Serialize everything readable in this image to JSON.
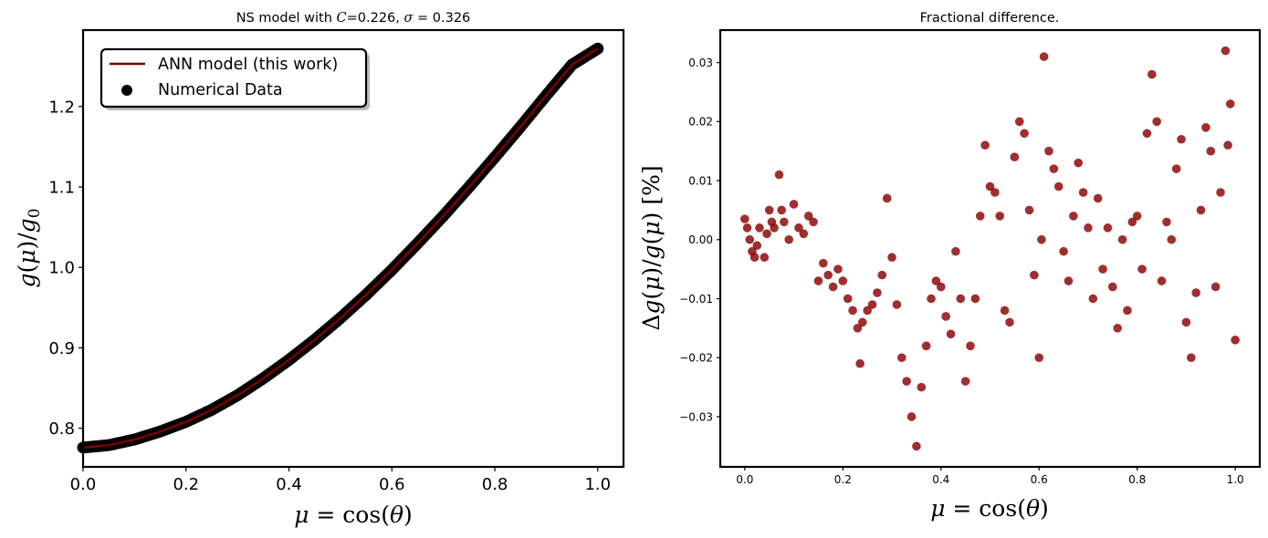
{
  "colors": {
    "line": "#7a0000",
    "marker": "#000000",
    "diff_marker": "#8b0000",
    "axes": "#000000",
    "background": "#ffffff"
  },
  "chart_data": [
    {
      "type": "line",
      "title_parts": {
        "prefix": "NS model with ",
        "c_symbol": "C",
        "c_value": "=0.226, ",
        "sigma_symbol": "σ",
        "sigma_value": " = 0.326"
      },
      "xlabel_parts": {
        "mu": "μ",
        "eq": " = ",
        "cos": "cos",
        "open": "(",
        "theta": "θ",
        "close": ")"
      },
      "ylabel_parts": {
        "g": "g",
        "open": "(",
        "mu": "μ",
        "close": ")",
        "slash": "/",
        "g0": "g",
        "sub0": "0"
      },
      "xlim": [
        0.0,
        1.05
      ],
      "ylim": [
        0.752,
        1.295
      ],
      "xticks": [
        "0.0",
        "0.2",
        "0.4",
        "0.6",
        "0.8",
        "1.0"
      ],
      "yticks": [
        "0.8",
        "0.9",
        "1.0",
        "1.1",
        "1.2"
      ],
      "legend": {
        "position": "upper-left",
        "entries": [
          "ANN model (this work)",
          "Numerical Data"
        ]
      },
      "series": [
        {
          "name": "ANN model (this work)",
          "kind": "line",
          "x": [
            0.0,
            0.05,
            0.1,
            0.15,
            0.2,
            0.25,
            0.3,
            0.35,
            0.4,
            0.45,
            0.5,
            0.55,
            0.6,
            0.65,
            0.7,
            0.75,
            0.8,
            0.85,
            0.9,
            0.95,
            1.0
          ],
          "y": [
            0.776,
            0.779,
            0.786,
            0.796,
            0.808,
            0.823,
            0.841,
            0.862,
            0.885,
            0.91,
            0.937,
            0.966,
            0.997,
            1.03,
            1.064,
            1.1,
            1.137,
            1.175,
            1.214,
            1.252,
            1.272
          ]
        },
        {
          "name": "Numerical Data",
          "kind": "scatter",
          "x": [
            0.0,
            0.05,
            0.1,
            0.15,
            0.2,
            0.25,
            0.3,
            0.35,
            0.4,
            0.45,
            0.5,
            0.55,
            0.6,
            0.65,
            0.7,
            0.75,
            0.8,
            0.85,
            0.9,
            0.95,
            1.0
          ],
          "y": [
            0.776,
            0.779,
            0.786,
            0.796,
            0.808,
            0.823,
            0.841,
            0.862,
            0.885,
            0.91,
            0.937,
            0.966,
            0.997,
            1.03,
            1.064,
            1.1,
            1.137,
            1.175,
            1.214,
            1.252,
            1.272
          ]
        }
      ]
    },
    {
      "type": "scatter",
      "title": "Fractional difference.",
      "xlabel_parts": {
        "mu": "μ",
        "eq": " = ",
        "cos": "cos",
        "open": "(",
        "theta": "θ",
        "close": ")"
      },
      "ylabel_parts": {
        "delta": "Δ",
        "g": "g",
        "open": "(",
        "mu": "μ",
        "close": ")",
        "slash": "/",
        "g2": "g",
        "open2": "(",
        "mu2": "μ",
        "close2": ")",
        "pct": " [%]"
      },
      "xlim": [
        -0.05,
        1.05
      ],
      "ylim": [
        -0.0385,
        0.0355
      ],
      "xticks": [
        "0.0",
        "0.2",
        "0.4",
        "0.6",
        "0.8",
        "1.0"
      ],
      "yticks": [
        "−0.03",
        "−0.02",
        "−0.01",
        "0.00",
        "0.01",
        "0.02",
        "0.03"
      ],
      "x": [
        0.0,
        0.005,
        0.01,
        0.015,
        0.02,
        0.025,
        0.03,
        0.04,
        0.045,
        0.05,
        0.055,
        0.06,
        0.07,
        0.075,
        0.08,
        0.09,
        0.1,
        0.11,
        0.12,
        0.13,
        0.14,
        0.15,
        0.16,
        0.17,
        0.18,
        0.19,
        0.2,
        0.21,
        0.22,
        0.23,
        0.235,
        0.24,
        0.25,
        0.26,
        0.27,
        0.28,
        0.29,
        0.3,
        0.31,
        0.32,
        0.33,
        0.34,
        0.35,
        0.36,
        0.37,
        0.38,
        0.39,
        0.4,
        0.41,
        0.42,
        0.43,
        0.44,
        0.45,
        0.46,
        0.47,
        0.48,
        0.49,
        0.5,
        0.51,
        0.52,
        0.53,
        0.54,
        0.55,
        0.56,
        0.57,
        0.58,
        0.59,
        0.6,
        0.605,
        0.61,
        0.62,
        0.63,
        0.64,
        0.65,
        0.66,
        0.67,
        0.68,
        0.69,
        0.7,
        0.71,
        0.72,
        0.73,
        0.74,
        0.75,
        0.76,
        0.77,
        0.78,
        0.79,
        0.8,
        0.81,
        0.82,
        0.83,
        0.84,
        0.85,
        0.86,
        0.87,
        0.88,
        0.89,
        0.9,
        0.91,
        0.92,
        0.93,
        0.94,
        0.95,
        0.96,
        0.97,
        0.98,
        0.985,
        0.99,
        1.0
      ],
      "y": [
        0.0035,
        0.002,
        0.0,
        -0.002,
        -0.003,
        -0.001,
        0.002,
        -0.003,
        0.001,
        0.005,
        0.003,
        0.002,
        0.011,
        0.005,
        0.003,
        0.0,
        0.006,
        0.002,
        0.001,
        0.004,
        0.003,
        -0.007,
        -0.004,
        -0.006,
        -0.008,
        -0.005,
        -0.007,
        -0.01,
        -0.012,
        -0.015,
        -0.021,
        -0.014,
        -0.012,
        -0.011,
        -0.009,
        -0.006,
        0.007,
        -0.003,
        -0.011,
        -0.02,
        -0.024,
        -0.03,
        -0.035,
        -0.025,
        -0.018,
        -0.01,
        -0.007,
        -0.008,
        -0.013,
        -0.016,
        -0.002,
        -0.01,
        -0.024,
        -0.018,
        -0.01,
        0.004,
        0.016,
        0.009,
        0.008,
        0.004,
        -0.012,
        -0.014,
        0.014,
        0.02,
        0.018,
        0.005,
        -0.006,
        -0.02,
        0.0,
        0.031,
        0.015,
        0.012,
        0.009,
        -0.002,
        -0.007,
        0.004,
        0.013,
        0.008,
        0.002,
        -0.01,
        0.007,
        -0.005,
        0.002,
        -0.008,
        -0.015,
        0.0,
        -0.012,
        0.003,
        0.004,
        -0.005,
        0.018,
        0.028,
        0.02,
        -0.007,
        0.003,
        0.0,
        0.012,
        0.017,
        -0.014,
        -0.02,
        -0.009,
        0.005,
        0.019,
        0.015,
        -0.008,
        0.008,
        0.032,
        0.016,
        0.023,
        -0.017
      ]
    }
  ]
}
